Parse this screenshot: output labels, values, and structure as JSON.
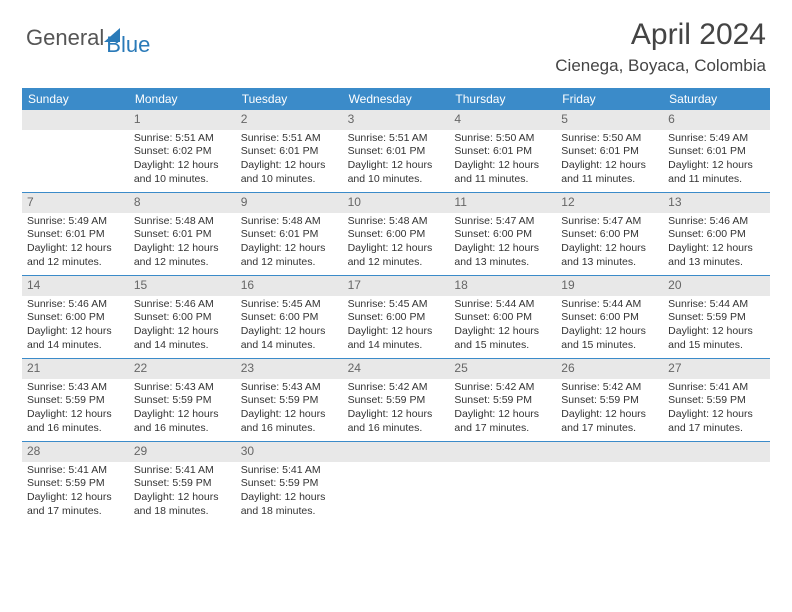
{
  "logo": {
    "part1": "General",
    "part2": "Blue"
  },
  "title": "April 2024",
  "location": "Cienega, Boyaca, Colombia",
  "dayNames": [
    "Sunday",
    "Monday",
    "Tuesday",
    "Wednesday",
    "Thursday",
    "Friday",
    "Saturday"
  ],
  "colors": {
    "headerBar": "#3b8bc9",
    "dayNumBg": "#e8e8e8",
    "text": "#333333"
  },
  "weeks": [
    [
      {
        "day": "",
        "lines": []
      },
      {
        "day": "1",
        "lines": [
          "Sunrise: 5:51 AM",
          "Sunset: 6:02 PM",
          "Daylight: 12 hours",
          "and 10 minutes."
        ]
      },
      {
        "day": "2",
        "lines": [
          "Sunrise: 5:51 AM",
          "Sunset: 6:01 PM",
          "Daylight: 12 hours",
          "and 10 minutes."
        ]
      },
      {
        "day": "3",
        "lines": [
          "Sunrise: 5:51 AM",
          "Sunset: 6:01 PM",
          "Daylight: 12 hours",
          "and 10 minutes."
        ]
      },
      {
        "day": "4",
        "lines": [
          "Sunrise: 5:50 AM",
          "Sunset: 6:01 PM",
          "Daylight: 12 hours",
          "and 11 minutes."
        ]
      },
      {
        "day": "5",
        "lines": [
          "Sunrise: 5:50 AM",
          "Sunset: 6:01 PM",
          "Daylight: 12 hours",
          "and 11 minutes."
        ]
      },
      {
        "day": "6",
        "lines": [
          "Sunrise: 5:49 AM",
          "Sunset: 6:01 PM",
          "Daylight: 12 hours",
          "and 11 minutes."
        ]
      }
    ],
    [
      {
        "day": "7",
        "lines": [
          "Sunrise: 5:49 AM",
          "Sunset: 6:01 PM",
          "Daylight: 12 hours",
          "and 12 minutes."
        ]
      },
      {
        "day": "8",
        "lines": [
          "Sunrise: 5:48 AM",
          "Sunset: 6:01 PM",
          "Daylight: 12 hours",
          "and 12 minutes."
        ]
      },
      {
        "day": "9",
        "lines": [
          "Sunrise: 5:48 AM",
          "Sunset: 6:01 PM",
          "Daylight: 12 hours",
          "and 12 minutes."
        ]
      },
      {
        "day": "10",
        "lines": [
          "Sunrise: 5:48 AM",
          "Sunset: 6:00 PM",
          "Daylight: 12 hours",
          "and 12 minutes."
        ]
      },
      {
        "day": "11",
        "lines": [
          "Sunrise: 5:47 AM",
          "Sunset: 6:00 PM",
          "Daylight: 12 hours",
          "and 13 minutes."
        ]
      },
      {
        "day": "12",
        "lines": [
          "Sunrise: 5:47 AM",
          "Sunset: 6:00 PM",
          "Daylight: 12 hours",
          "and 13 minutes."
        ]
      },
      {
        "day": "13",
        "lines": [
          "Sunrise: 5:46 AM",
          "Sunset: 6:00 PM",
          "Daylight: 12 hours",
          "and 13 minutes."
        ]
      }
    ],
    [
      {
        "day": "14",
        "lines": [
          "Sunrise: 5:46 AM",
          "Sunset: 6:00 PM",
          "Daylight: 12 hours",
          "and 14 minutes."
        ]
      },
      {
        "day": "15",
        "lines": [
          "Sunrise: 5:46 AM",
          "Sunset: 6:00 PM",
          "Daylight: 12 hours",
          "and 14 minutes."
        ]
      },
      {
        "day": "16",
        "lines": [
          "Sunrise: 5:45 AM",
          "Sunset: 6:00 PM",
          "Daylight: 12 hours",
          "and 14 minutes."
        ]
      },
      {
        "day": "17",
        "lines": [
          "Sunrise: 5:45 AM",
          "Sunset: 6:00 PM",
          "Daylight: 12 hours",
          "and 14 minutes."
        ]
      },
      {
        "day": "18",
        "lines": [
          "Sunrise: 5:44 AM",
          "Sunset: 6:00 PM",
          "Daylight: 12 hours",
          "and 15 minutes."
        ]
      },
      {
        "day": "19",
        "lines": [
          "Sunrise: 5:44 AM",
          "Sunset: 6:00 PM",
          "Daylight: 12 hours",
          "and 15 minutes."
        ]
      },
      {
        "day": "20",
        "lines": [
          "Sunrise: 5:44 AM",
          "Sunset: 5:59 PM",
          "Daylight: 12 hours",
          "and 15 minutes."
        ]
      }
    ],
    [
      {
        "day": "21",
        "lines": [
          "Sunrise: 5:43 AM",
          "Sunset: 5:59 PM",
          "Daylight: 12 hours",
          "and 16 minutes."
        ]
      },
      {
        "day": "22",
        "lines": [
          "Sunrise: 5:43 AM",
          "Sunset: 5:59 PM",
          "Daylight: 12 hours",
          "and 16 minutes."
        ]
      },
      {
        "day": "23",
        "lines": [
          "Sunrise: 5:43 AM",
          "Sunset: 5:59 PM",
          "Daylight: 12 hours",
          "and 16 minutes."
        ]
      },
      {
        "day": "24",
        "lines": [
          "Sunrise: 5:42 AM",
          "Sunset: 5:59 PM",
          "Daylight: 12 hours",
          "and 16 minutes."
        ]
      },
      {
        "day": "25",
        "lines": [
          "Sunrise: 5:42 AM",
          "Sunset: 5:59 PM",
          "Daylight: 12 hours",
          "and 17 minutes."
        ]
      },
      {
        "day": "26",
        "lines": [
          "Sunrise: 5:42 AM",
          "Sunset: 5:59 PM",
          "Daylight: 12 hours",
          "and 17 minutes."
        ]
      },
      {
        "day": "27",
        "lines": [
          "Sunrise: 5:41 AM",
          "Sunset: 5:59 PM",
          "Daylight: 12 hours",
          "and 17 minutes."
        ]
      }
    ],
    [
      {
        "day": "28",
        "lines": [
          "Sunrise: 5:41 AM",
          "Sunset: 5:59 PM",
          "Daylight: 12 hours",
          "and 17 minutes."
        ]
      },
      {
        "day": "29",
        "lines": [
          "Sunrise: 5:41 AM",
          "Sunset: 5:59 PM",
          "Daylight: 12 hours",
          "and 18 minutes."
        ]
      },
      {
        "day": "30",
        "lines": [
          "Sunrise: 5:41 AM",
          "Sunset: 5:59 PM",
          "Daylight: 12 hours",
          "and 18 minutes."
        ]
      },
      {
        "day": "",
        "lines": []
      },
      {
        "day": "",
        "lines": []
      },
      {
        "day": "",
        "lines": []
      },
      {
        "day": "",
        "lines": []
      }
    ]
  ]
}
